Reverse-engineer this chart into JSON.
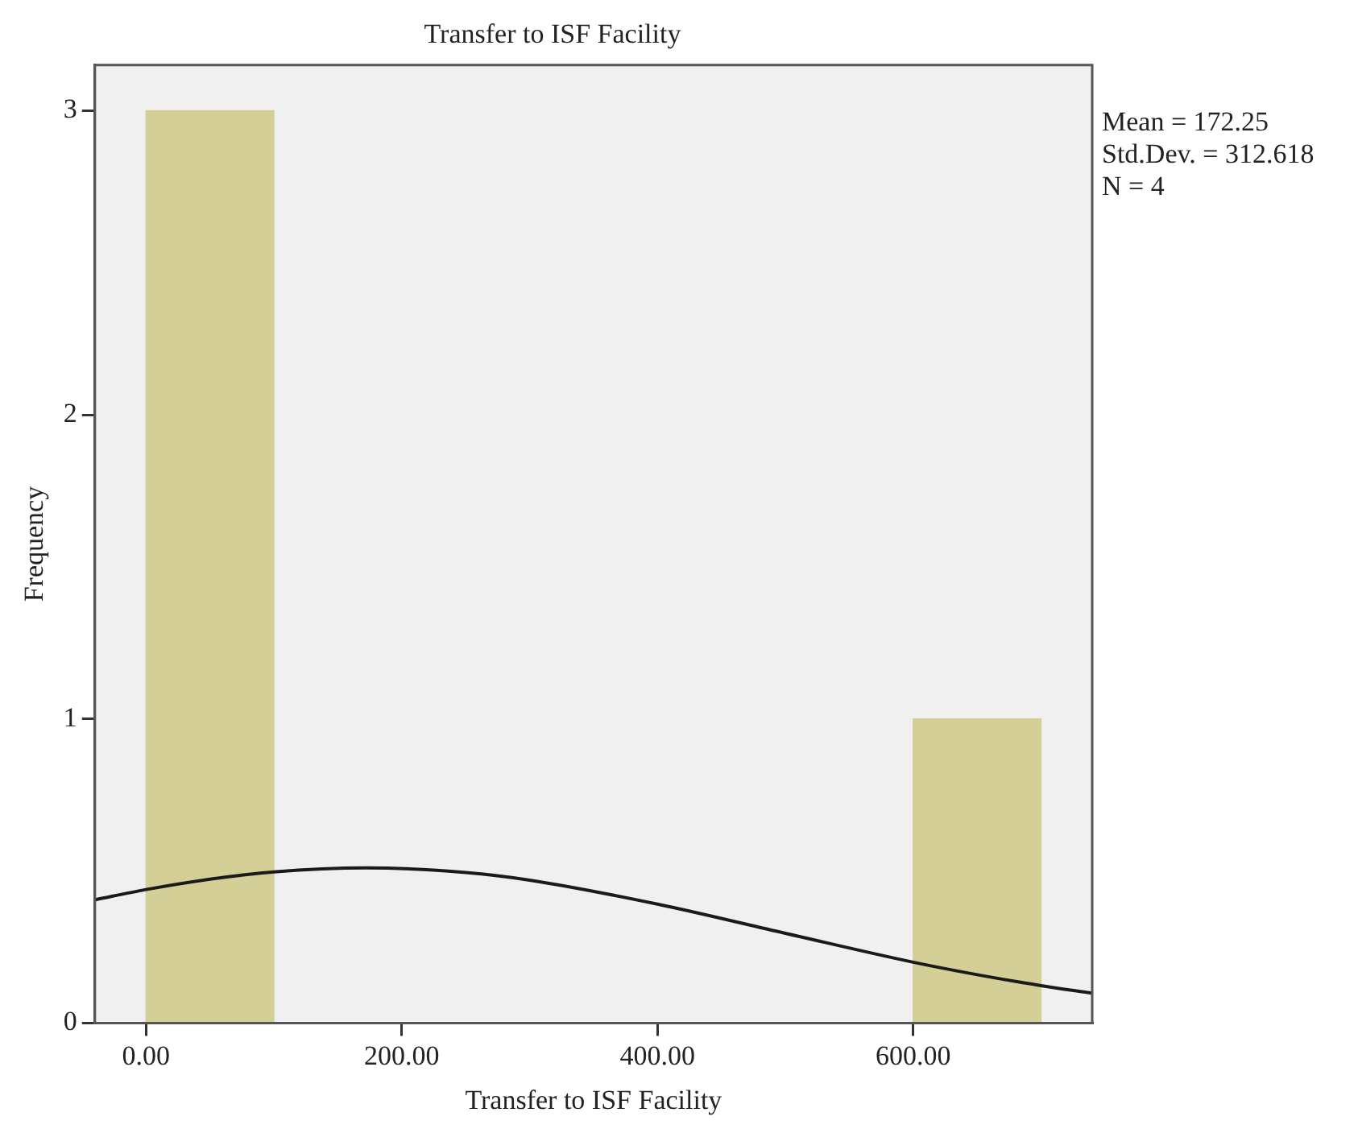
{
  "chart_data": {
    "type": "histogram",
    "title": "Transfer to ISF Facility",
    "xlabel": "Transfer to ISF Facility",
    "ylabel": "Frequency",
    "bins": [
      0,
      100,
      200,
      300,
      400,
      500,
      600,
      700
    ],
    "values": [
      3,
      0,
      0,
      0,
      0,
      0,
      1
    ],
    "color": "#d3cf97",
    "series": [
      {
        "type": "line",
        "color": "#1a1a1a",
        "x": [
          -40,
          0,
          50,
          100,
          172,
          250,
          300,
          400,
          500,
          600,
          650,
          700,
          740
        ],
        "values": [
          0.405,
          0.439,
          0.473,
          0.497,
          0.51,
          0.495,
          0.47,
          0.391,
          0.295,
          0.2,
          0.159,
          0.123,
          0.098
        ]
      }
    ],
    "xlim": [
      -40,
      740
    ],
    "xticks": [
      {
        "value": 0,
        "label": "0.00"
      },
      {
        "value": 200,
        "label": "200.00"
      },
      {
        "value": 400,
        "label": "400.00"
      },
      {
        "value": 600,
        "label": "600.00"
      }
    ],
    "ylim": [
      0,
      3.15
    ],
    "yticks": [
      0,
      1,
      2,
      3
    ],
    "grid": false,
    "legend": false,
    "annotations": [
      "Mean = 172.25",
      "Std.Dev. = 312.618",
      "N = 4"
    ]
  }
}
